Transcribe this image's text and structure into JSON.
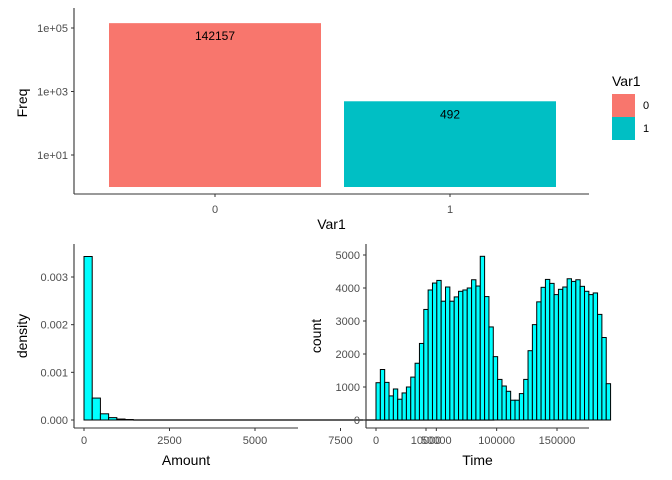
{
  "chart_data": [
    {
      "type": "bar",
      "xlabel": "Var1",
      "ylabel": "Freq",
      "y_scale": "log10",
      "y_ticks": [
        "1e+01",
        "1e+03",
        "1e+05"
      ],
      "y_tick_values": [
        10,
        1000,
        100000
      ],
      "categories": [
        "0",
        "1"
      ],
      "values": [
        142157,
        492
      ],
      "data_labels": [
        "142157",
        "492"
      ],
      "colors": [
        "#F8766D",
        "#00BFC4"
      ],
      "legend": {
        "title": "Var1",
        "position": "right",
        "entries": [
          {
            "label": "0",
            "color": "#F8766D"
          },
          {
            "label": "1",
            "color": "#00BFC4"
          }
        ]
      },
      "grid": false
    },
    {
      "type": "bar",
      "subtype": "histogram",
      "xlabel": "Amount",
      "ylabel": "density",
      "x_ticks": [
        "0",
        "2500",
        "5000",
        "7500",
        "10000"
      ],
      "x_tick_values": [
        0,
        2500,
        5000,
        7500,
        10000
      ],
      "y_ticks": [
        "0.000",
        "0.001",
        "0.002",
        "0.003"
      ],
      "y_tick_values": [
        0,
        0.001,
        0.002,
        0.003
      ],
      "xlim": [
        0,
        12000
      ],
      "ylim": [
        0,
        0.0036
      ],
      "bin_width": 240,
      "bin_start": 0,
      "values": [
        0.00343,
        0.00046,
        0.00013,
        5e-05,
        2e-05,
        1e-05
      ],
      "fill": "#00FFFF",
      "stroke": "#000000",
      "grid": false
    },
    {
      "type": "bar",
      "subtype": "histogram",
      "xlabel": "Time",
      "ylabel": "count",
      "x_ticks": [
        "0",
        "50000",
        "100000",
        "150000"
      ],
      "x_tick_values": [
        0,
        50000,
        100000,
        150000
      ],
      "y_ticks": [
        "0",
        "1000",
        "2000",
        "3000",
        "4000",
        "5000"
      ],
      "y_tick_values": [
        0,
        1000,
        2000,
        3000,
        4000,
        5000
      ],
      "xlim": [
        -5000,
        178000
      ],
      "ylim": [
        0,
        5100
      ],
      "bin_width": 3600,
      "bin_start": 0,
      "values": [
        1130,
        1530,
        1140,
        730,
        940,
        630,
        820,
        1000,
        1300,
        1720,
        2320,
        3350,
        3940,
        4150,
        4230,
        3600,
        4030,
        3600,
        3730,
        3900,
        3940,
        4000,
        4250,
        4060,
        4960,
        3740,
        2820,
        1920,
        1230,
        1030,
        870,
        600,
        600,
        800,
        1230,
        2100,
        2890,
        3580,
        4020,
        4260,
        4140,
        3800,
        3960,
        4030,
        4280,
        4200,
        4250,
        4050,
        3900,
        3800,
        3850,
        3200,
        2500,
        1100
      ],
      "fill": "#00FFFF",
      "stroke": "#000000",
      "grid": false
    }
  ]
}
